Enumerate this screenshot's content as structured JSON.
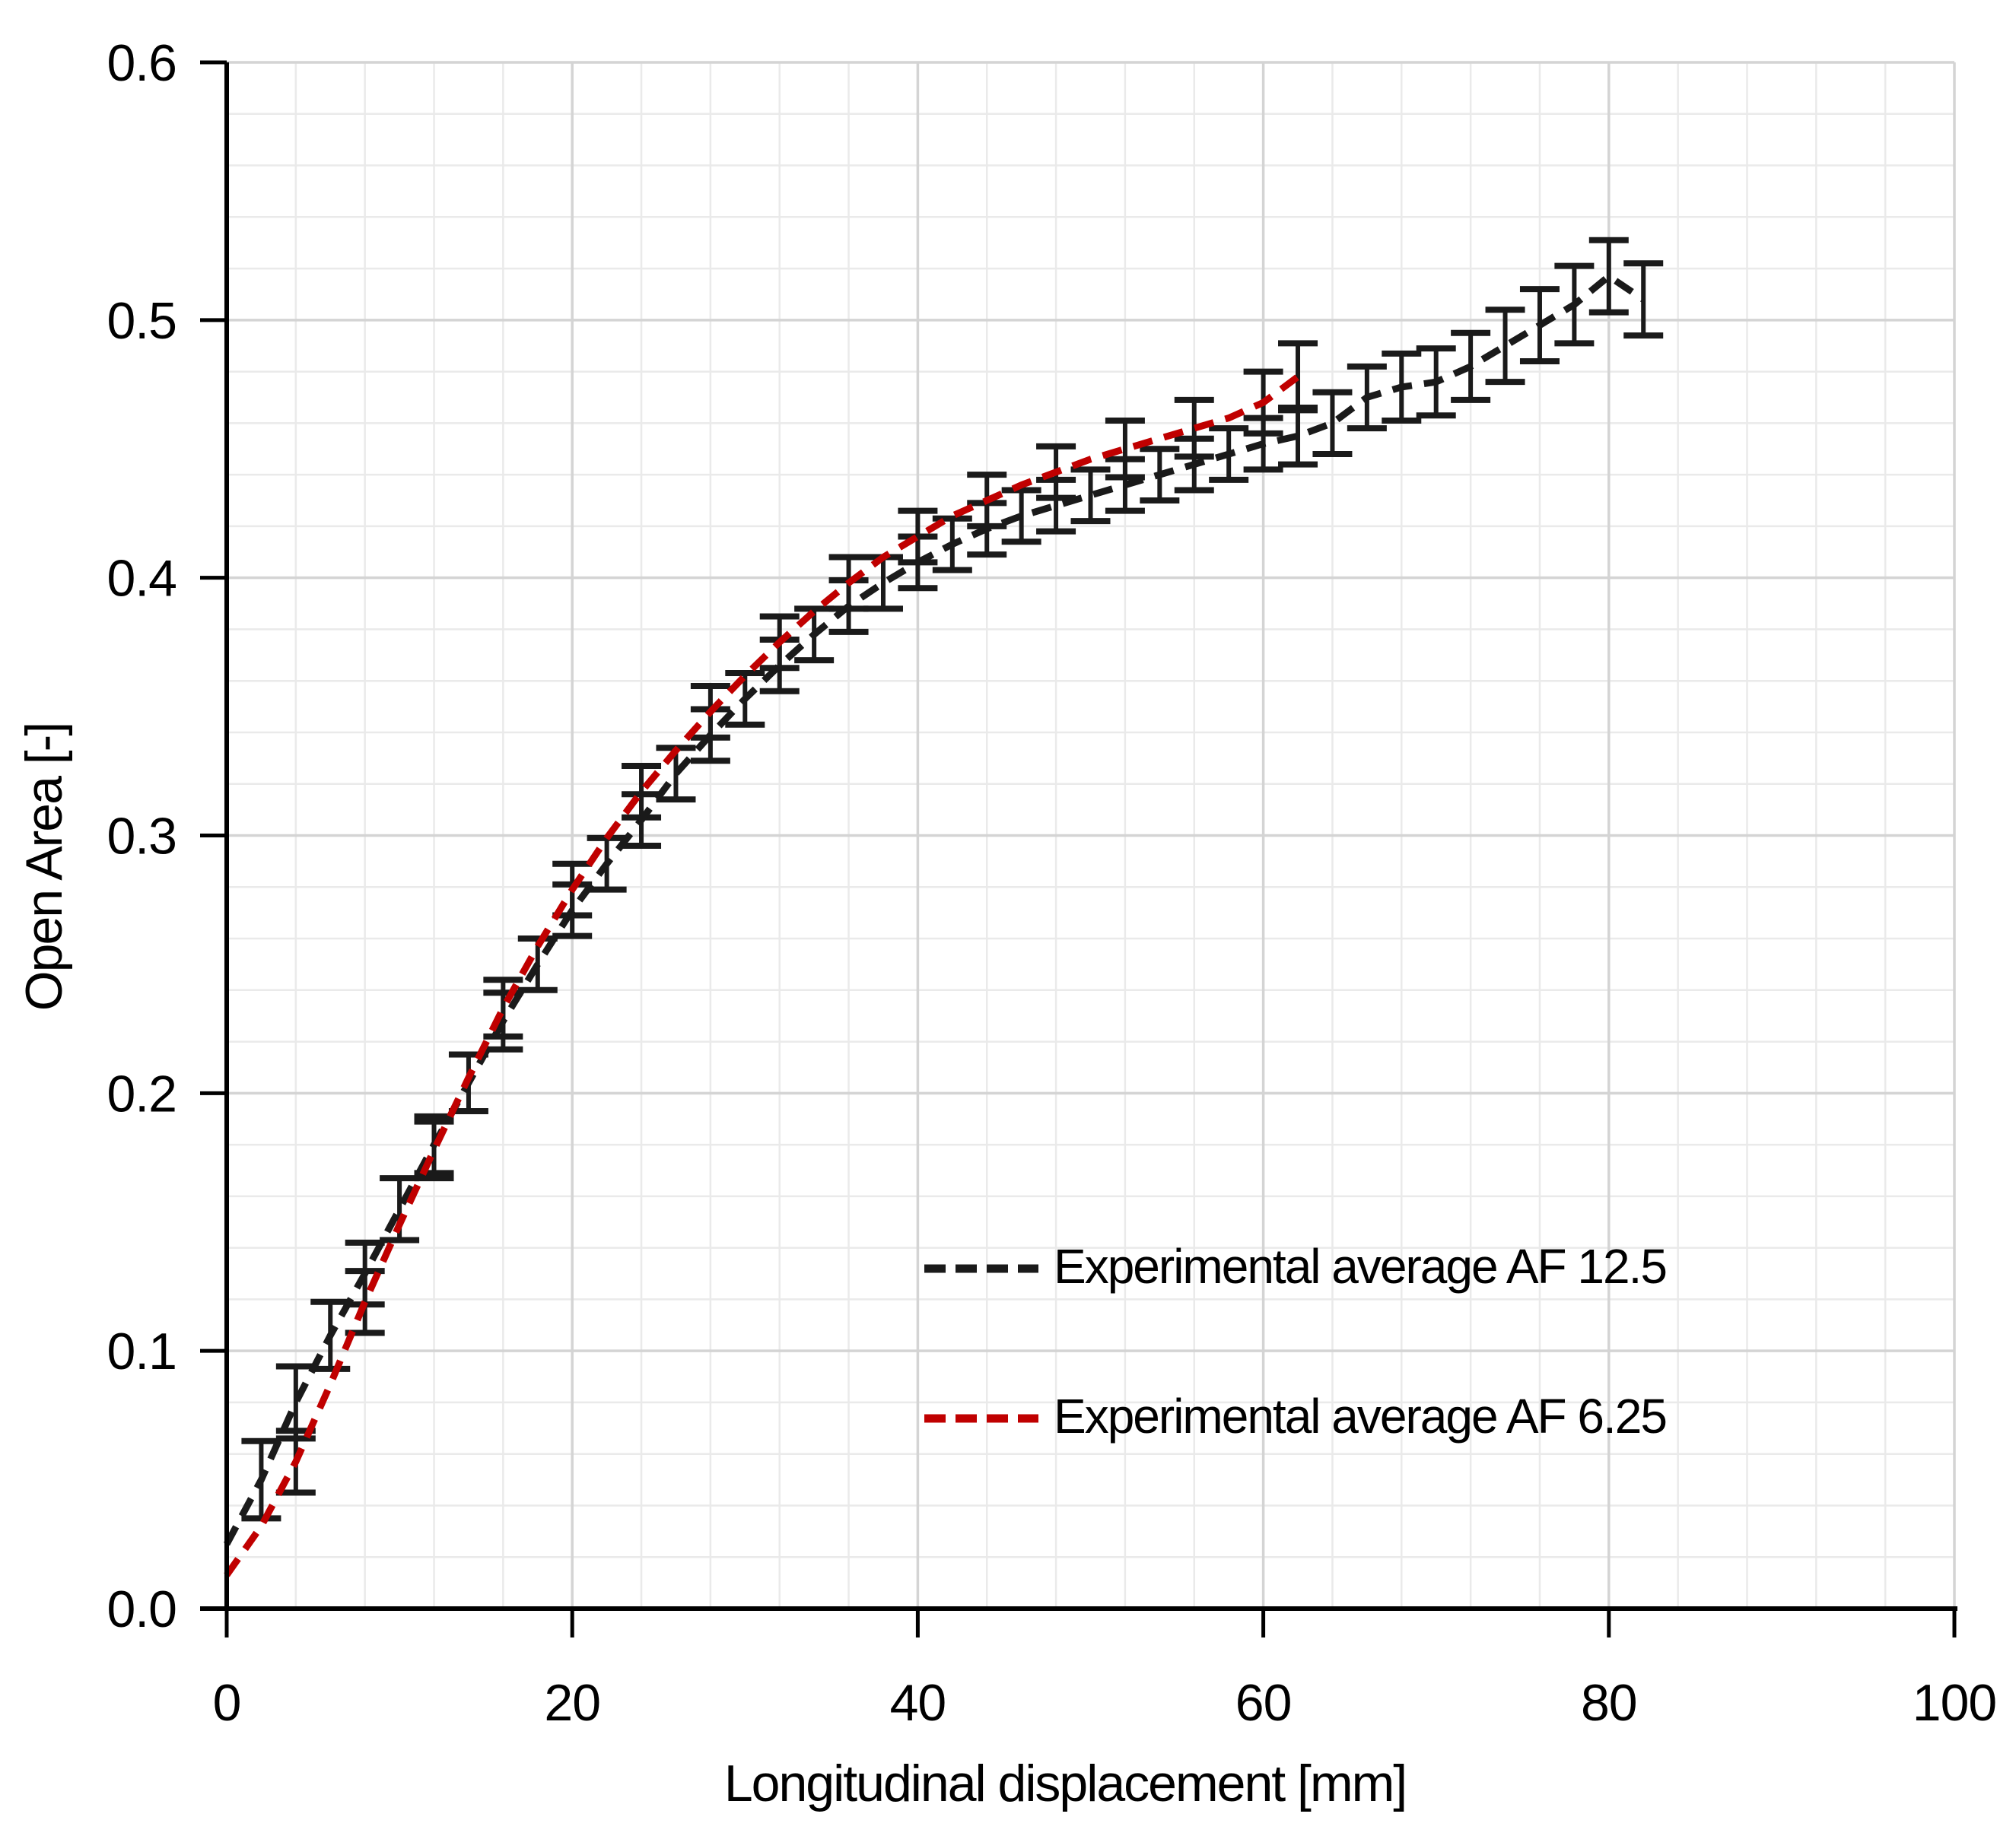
{
  "chart_data": {
    "type": "line",
    "title": "",
    "xlabel": "Longitudinal displacement [mm]",
    "ylabel": "Open Area [-]",
    "xlim": [
      0,
      100
    ],
    "ylim": [
      0.0,
      0.6
    ],
    "x_major_ticks": [
      0,
      20,
      40,
      60,
      80,
      100
    ],
    "y_major_ticks": [
      0.0,
      0.1,
      0.2,
      0.3,
      0.4,
      0.5,
      0.6
    ],
    "x_minor_step": 4,
    "y_minor_step": 0.02,
    "grid": true,
    "legend_position": "inside lower right",
    "error_bar_color": "#1a1a1a",
    "series": [
      {
        "name": "Experimental average AF 12.5",
        "color": "#1a1a1a",
        "line_style": "dashed",
        "x": [
          0,
          2,
          4,
          6,
          8,
          10,
          12,
          14,
          16,
          18,
          20,
          22,
          24,
          26,
          28,
          30,
          32,
          34,
          36,
          38,
          40,
          42,
          44,
          46,
          48,
          50,
          52,
          54,
          56,
          58,
          60,
          62,
          64,
          66,
          68,
          70,
          72,
          74,
          76,
          78,
          80,
          82
        ],
        "y": [
          0.025,
          0.05,
          0.08,
          0.106,
          0.13,
          0.155,
          0.18,
          0.204,
          0.228,
          0.25,
          0.271,
          0.289,
          0.306,
          0.324,
          0.339,
          0.353,
          0.366,
          0.378,
          0.389,
          0.398,
          0.406,
          0.413,
          0.419,
          0.424,
          0.428,
          0.432,
          0.436,
          0.44,
          0.444,
          0.448,
          0.452,
          0.455,
          0.46,
          0.47,
          0.474,
          0.476,
          0.482,
          0.49,
          0.498,
          0.506,
          0.517,
          0.508
        ],
        "error_x": [
          2,
          4,
          6,
          8,
          10,
          12,
          14,
          16,
          18,
          20,
          22,
          24,
          26,
          28,
          30,
          32,
          34,
          36,
          38,
          40,
          42,
          44,
          46,
          48,
          50,
          52,
          54,
          56,
          58,
          60,
          62,
          64,
          66,
          68,
          70,
          72,
          74,
          76,
          78,
          80,
          82
        ],
        "error_half": [
          0.015,
          0.014,
          0.013,
          0.012,
          0.012,
          0.011,
          0.011,
          0.011,
          0.01,
          0.01,
          0.01,
          0.01,
          0.01,
          0.01,
          0.01,
          0.01,
          0.01,
          0.01,
          0.01,
          0.01,
          0.01,
          0.01,
          0.01,
          0.01,
          0.01,
          0.01,
          0.01,
          0.01,
          0.01,
          0.01,
          0.011,
          0.012,
          0.012,
          0.013,
          0.013,
          0.013,
          0.014,
          0.014,
          0.015,
          0.014,
          0.014
        ]
      },
      {
        "name": "Experimental average AF 6.25",
        "color": "#c00000",
        "line_style": "dashed",
        "x": [
          0,
          2,
          4,
          6,
          8,
          10,
          12,
          14,
          16,
          18,
          20,
          22,
          24,
          26,
          28,
          30,
          32,
          34,
          36,
          38,
          40,
          42,
          44,
          46,
          48,
          50,
          52,
          54,
          56,
          58,
          60,
          62
        ],
        "y": [
          0.013,
          0.032,
          0.057,
          0.087,
          0.119,
          0.149,
          0.178,
          0.206,
          0.233,
          0.257,
          0.279,
          0.299,
          0.317,
          0.333,
          0.348,
          0.362,
          0.375,
          0.387,
          0.398,
          0.408,
          0.416,
          0.424,
          0.43,
          0.436,
          0.441,
          0.446,
          0.45,
          0.454,
          0.458,
          0.462,
          0.468,
          0.478
        ],
        "error_x": [
          4,
          8,
          12,
          16,
          20,
          24,
          28,
          32,
          36,
          40,
          44,
          48,
          52,
          56,
          60,
          62
        ],
        "error_half": [
          0.012,
          0.012,
          0.011,
          0.011,
          0.01,
          0.01,
          0.01,
          0.01,
          0.01,
          0.01,
          0.01,
          0.01,
          0.011,
          0.011,
          0.012,
          0.013
        ]
      }
    ]
  },
  "axis": {
    "x_tick_labels": [
      "0",
      "20",
      "40",
      "60",
      "80",
      "100"
    ],
    "y_tick_labels": [
      "0.0",
      "0.1",
      "0.2",
      "0.3",
      "0.4",
      "0.5",
      "0.6"
    ]
  },
  "colors": {
    "background": "#ffffff",
    "axis_line": "#000000",
    "major_grid": "#d4d4d4",
    "minor_grid": "#eaeaea",
    "text": "#000000",
    "series_black": "#1a1a1a",
    "series_red": "#c00000"
  }
}
